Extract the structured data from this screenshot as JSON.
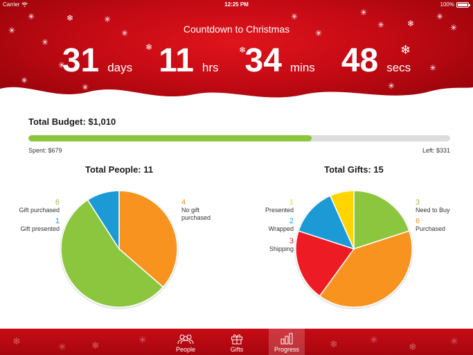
{
  "status_bar": {
    "carrier": "Carrier",
    "time": "12:25 PM",
    "battery": "100%"
  },
  "countdown": {
    "title": "Countdown to Christmas",
    "days": "31",
    "days_label": "days",
    "hours": "11",
    "hours_label": "hrs",
    "mins": "34",
    "mins_label": "mins",
    "secs": "48",
    "secs_label": "secs"
  },
  "budget": {
    "title": "Total Budget: $1,010",
    "spent_label": "Spent: $679",
    "left_label": "Left: $331",
    "spent": 679,
    "total": 1010,
    "fill_color": "#8cc63f",
    "track_color": "#dcdcdc"
  },
  "people": {
    "title": "Total People: 11",
    "slices": [
      {
        "label": "No gift purchased",
        "label_lines": [
          "No gift",
          "purchased"
        ],
        "value": 4,
        "color": "#f7931e"
      },
      {
        "label": "Gift purchased",
        "label_lines": [
          "Gift purchased"
        ],
        "value": 6,
        "color": "#8cc63f"
      },
      {
        "label": "Gift presented",
        "label_lines": [
          "Gift presented"
        ],
        "value": 1,
        "color": "#1b9ad6"
      }
    ]
  },
  "gifts": {
    "title": "Total Gifts: 15",
    "slices": [
      {
        "label": "Need to Buy",
        "label_lines": [
          "Need to Buy"
        ],
        "value": 3,
        "color": "#8cc63f"
      },
      {
        "label": "Purchased",
        "label_lines": [
          "Purchased"
        ],
        "value": 6,
        "color": "#f7931e"
      },
      {
        "label": "Shipping",
        "label_lines": [
          "Shipping"
        ],
        "value": 3,
        "color": "#ed1c24"
      },
      {
        "label": "Wrapped",
        "label_lines": [
          "Wrapped"
        ],
        "value": 2,
        "color": "#1b9ad6"
      },
      {
        "label": "Presented",
        "label_lines": [
          "Presented"
        ],
        "value": 1,
        "color": "#ffd400"
      }
    ]
  },
  "tabbar": {
    "items": [
      {
        "label": "People",
        "icon": "people-icon",
        "active": false
      },
      {
        "label": "Gifts",
        "icon": "gift-icon",
        "active": false
      },
      {
        "label": "Progress",
        "icon": "bar-chart-icon",
        "active": true
      }
    ]
  }
}
